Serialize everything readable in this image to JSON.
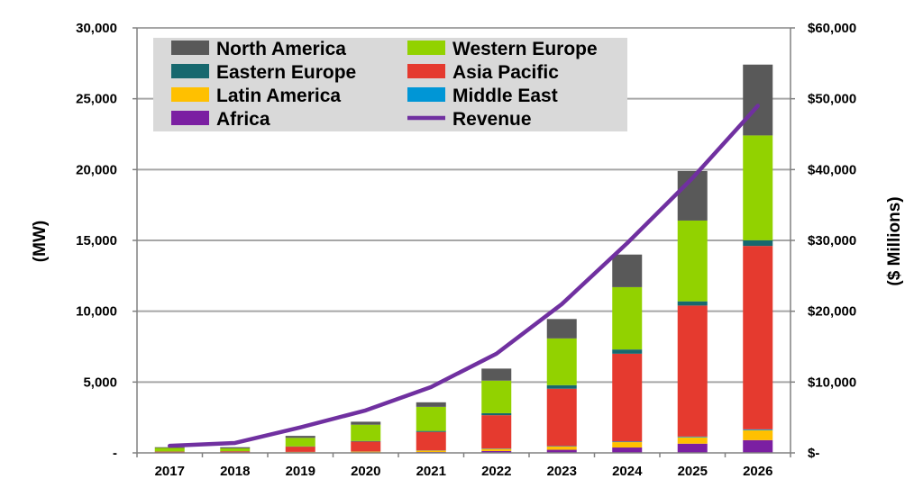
{
  "chart_data": {
    "type": "bar",
    "stacked": true,
    "categories": [
      "2017",
      "2018",
      "2019",
      "2020",
      "2021",
      "2022",
      "2023",
      "2024",
      "2025",
      "2026"
    ],
    "ylabel": "(MW)",
    "y2label": "($ Millions)",
    "ylim": [
      0,
      30000
    ],
    "y2lim": [
      0,
      60000
    ],
    "yticks": [
      "-",
      "5,000",
      "10,000",
      "15,000",
      "20,000",
      "25,000",
      "30,000"
    ],
    "y2ticks": [
      "$-",
      "$10,000",
      "$20,000",
      "$30,000",
      "$40,000",
      "$50,000",
      "$60,000"
    ],
    "grid": true,
    "legend_position": "top-left",
    "series": [
      {
        "name": "Africa",
        "color": "#7B1FA2",
        "values": [
          10,
          10,
          20,
          30,
          60,
          130,
          220,
          380,
          650,
          900
        ]
      },
      {
        "name": "Latin America",
        "color": "#FFC000",
        "values": [
          20,
          20,
          40,
          60,
          100,
          150,
          230,
          380,
          450,
          700
        ]
      },
      {
        "name": "Middle East",
        "color": "#0096D6",
        "values": [
          0,
          0,
          10,
          10,
          20,
          30,
          30,
          40,
          50,
          60
        ]
      },
      {
        "name": "Asia Pacific",
        "color": "#E53A2F",
        "values": [
          60,
          80,
          370,
          700,
          1300,
          2350,
          4050,
          6200,
          9250,
          12950
        ]
      },
      {
        "name": "Eastern Europe",
        "color": "#17686E",
        "values": [
          10,
          10,
          20,
          40,
          70,
          140,
          250,
          300,
          300,
          400
        ]
      },
      {
        "name": "Western Europe",
        "color": "#92D200",
        "values": [
          250,
          200,
          600,
          1150,
          1700,
          2300,
          3300,
          4400,
          5700,
          7400
        ]
      },
      {
        "name": "North America",
        "color": "#595959",
        "values": [
          50,
          80,
          140,
          210,
          320,
          850,
          1370,
          2300,
          3500,
          5000
        ]
      }
    ],
    "line_series": {
      "name": "Revenue",
      "axis": "secondary",
      "color": "#7030A0",
      "values": [
        1000,
        1400,
        3600,
        6000,
        9300,
        14000,
        21000,
        29600,
        38800,
        49000
      ]
    }
  },
  "legend": {
    "left": [
      "North America",
      "Eastern Europe",
      "Latin America",
      "Africa"
    ],
    "right": [
      "Western Europe",
      "Asia Pacific",
      "Middle East",
      "Revenue"
    ]
  }
}
